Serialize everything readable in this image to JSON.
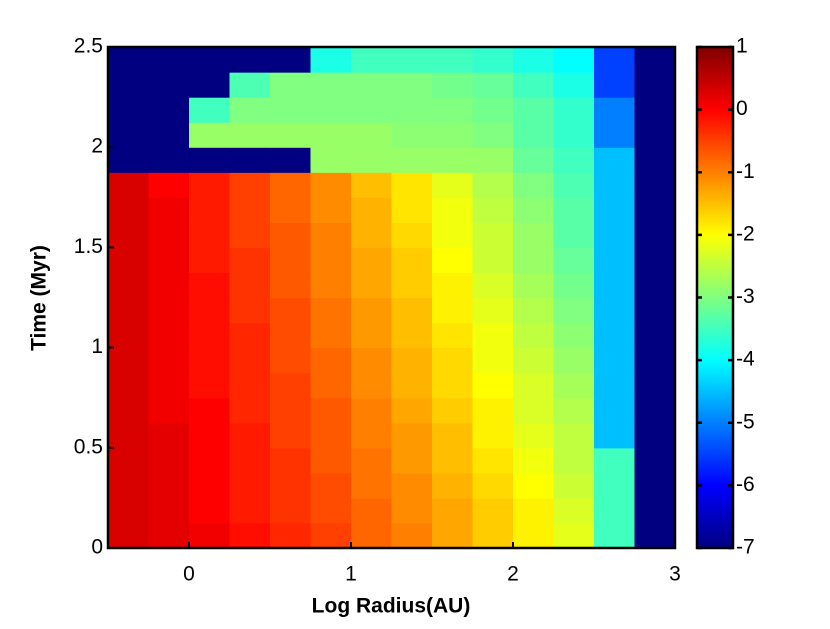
{
  "chart_data": {
    "type": "heatmap",
    "xlabel": "Log Radius(AU)",
    "ylabel": "Time (Myr)",
    "colormap": "jet",
    "x": [
      -0.375,
      -0.125,
      0.125,
      0.375,
      0.625,
      0.875,
      1.125,
      1.375,
      1.625,
      1.875,
      2.125,
      2.375,
      2.625,
      2.875
    ],
    "y": [
      0.0625,
      0.1875,
      0.3125,
      0.4375,
      0.5625,
      0.6875,
      0.8125,
      0.9375,
      1.0625,
      1.1875,
      1.3125,
      1.4375,
      1.5625,
      1.6875,
      1.8125,
      1.9375,
      2.0625,
      2.1875,
      2.3125,
      2.4375
    ],
    "z": [
      [
        0.3,
        0.2,
        0.1,
        -0.1,
        -0.3,
        -0.5,
        -0.8,
        -1.0,
        -1.3,
        -1.6,
        -1.9,
        -2.2,
        -3.5,
        -7
      ],
      [
        0.3,
        0.2,
        0.0,
        -0.2,
        -0.4,
        -0.6,
        -0.8,
        -1.1,
        -1.3,
        -1.6,
        -1.9,
        -2.3,
        -3.5,
        -7
      ],
      [
        0.3,
        0.2,
        0.0,
        -0.2,
        -0.4,
        -0.6,
        -0.9,
        -1.1,
        -1.4,
        -1.7,
        -2.0,
        -2.4,
        -3.5,
        -7
      ],
      [
        0.3,
        0.2,
        0.0,
        -0.2,
        -0.4,
        -0.7,
        -0.9,
        -1.2,
        -1.5,
        -1.8,
        -2.1,
        -2.5,
        -3.5,
        -7
      ],
      [
        0.3,
        0.2,
        0.0,
        -0.2,
        -0.5,
        -0.7,
        -1.0,
        -1.2,
        -1.5,
        -1.9,
        -2.2,
        -2.5,
        -4.5,
        -7
      ],
      [
        0.3,
        0.1,
        0.0,
        -0.3,
        -0.5,
        -0.7,
        -1.0,
        -1.3,
        -1.6,
        -1.9,
        -2.3,
        -2.6,
        -4.5,
        -7
      ],
      [
        0.3,
        0.1,
        -0.1,
        -0.3,
        -0.5,
        -0.8,
        -1.1,
        -1.4,
        -1.7,
        -2.0,
        -2.3,
        -2.7,
        -4.5,
        -7
      ],
      [
        0.3,
        0.1,
        -0.1,
        -0.3,
        -0.6,
        -0.8,
        -1.1,
        -1.4,
        -1.7,
        -2.1,
        -2.4,
        -2.8,
        -4.5,
        -7
      ],
      [
        0.3,
        0.1,
        -0.1,
        -0.3,
        -0.6,
        -0.9,
        -1.2,
        -1.5,
        -1.8,
        -2.1,
        -2.5,
        -2.9,
        -4.5,
        -7
      ],
      [
        0.3,
        0.1,
        -0.1,
        -0.4,
        -0.6,
        -0.9,
        -1.2,
        -1.5,
        -1.9,
        -2.2,
        -2.6,
        -3.0,
        -4.5,
        -7
      ],
      [
        0.3,
        0.1,
        -0.1,
        -0.4,
        -0.7,
        -1.0,
        -1.3,
        -1.6,
        -1.9,
        -2.3,
        -2.7,
        -3.1,
        -4.5,
        -7
      ],
      [
        0.3,
        0.1,
        -0.2,
        -0.4,
        -0.7,
        -1.0,
        -1.3,
        -1.6,
        -2.0,
        -2.4,
        -2.8,
        -3.2,
        -4.5,
        -7
      ],
      [
        0.3,
        0.1,
        -0.2,
        -0.5,
        -0.7,
        -1.0,
        -1.4,
        -1.7,
        -2.1,
        -2.4,
        -2.8,
        -3.3,
        -4.5,
        -7
      ],
      [
        0.3,
        0.1,
        -0.2,
        -0.5,
        -0.8,
        -1.1,
        -1.4,
        -1.8,
        -2.1,
        -2.5,
        -2.9,
        -3.3,
        -4.5,
        -7
      ],
      [
        0.3,
        0.0,
        -0.2,
        -0.5,
        -0.8,
        -1.1,
        -1.5,
        -1.8,
        -2.2,
        -2.6,
        -3.0,
        -3.4,
        -4.5,
        -7
      ],
      [
        -7,
        -7,
        -7,
        -7,
        -7,
        -2.8,
        -2.8,
        -2.8,
        -2.8,
        -2.8,
        -3.2,
        -3.5,
        -4.5,
        -7
      ],
      [
        -7,
        -7,
        -2.8,
        -2.8,
        -2.8,
        -2.8,
        -2.8,
        -2.9,
        -2.9,
        -3.0,
        -3.3,
        -3.6,
        -5,
        -7
      ],
      [
        -7,
        -7,
        -3.5,
        -3.0,
        -3.0,
        -3.0,
        -3.0,
        -3.0,
        -3.0,
        -3.1,
        -3.3,
        -3.6,
        -5,
        -7
      ],
      [
        -7,
        -7,
        -7,
        -3.4,
        -3.0,
        -3.0,
        -3.0,
        -3.0,
        -3.1,
        -3.2,
        -3.5,
        -3.8,
        -5.5,
        -7
      ],
      [
        -7,
        -7,
        -7,
        -7,
        -7,
        -3.8,
        -3.5,
        -3.5,
        -3.5,
        -3.6,
        -3.8,
        -4.0,
        -5.5,
        -7
      ]
    ],
    "xlim": [
      -0.5,
      3
    ],
    "xticks": [
      0,
      1,
      2,
      3
    ],
    "ylim": [
      0,
      2.5
    ],
    "yticks": [
      0,
      0.5,
      1,
      1.5,
      2,
      2.5
    ],
    "clim": [
      -7,
      1
    ],
    "cticks": [
      -7,
      -6,
      -5,
      -4,
      -3,
      -2,
      -1,
      0,
      1
    ]
  }
}
